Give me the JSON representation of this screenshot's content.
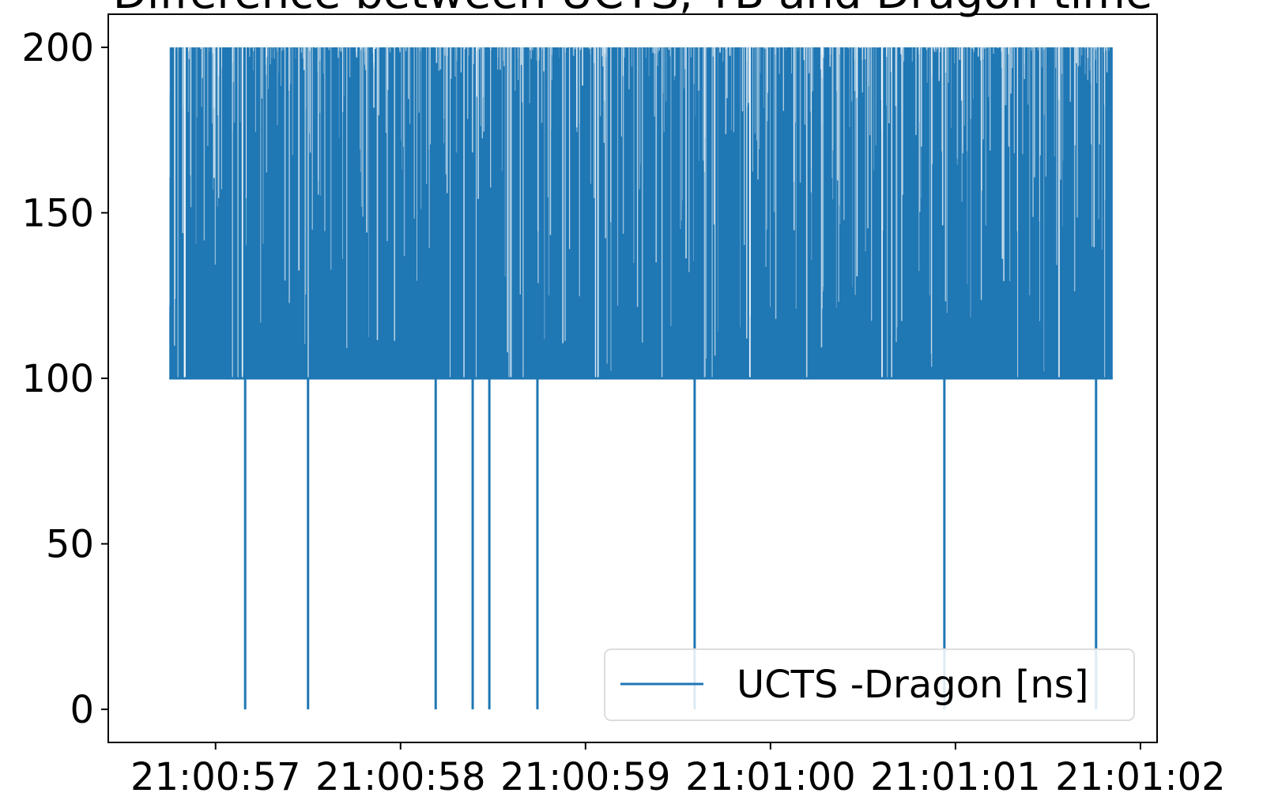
{
  "chart_data": {
    "type": "line",
    "title": "Difference between UCTS, TB and Dragon time",
    "xlabel": "",
    "ylabel": "",
    "x_tick_labels": [
      "21:00:57",
      "21:00:58",
      "21:00:59",
      "21:01:00",
      "21:01:01",
      "21:01:02"
    ],
    "y_ticks": [
      0,
      50,
      100,
      150,
      200
    ],
    "ylim": [
      -10,
      210
    ],
    "xlim": [
      "21:00:56.42",
      "21:01:02.09"
    ],
    "grid": false,
    "legend": {
      "placement": "lower right"
    },
    "series": [
      {
        "name": "UCTS -Dragon [ns]",
        "color": "#1f77b4",
        "x_range": [
          "21:00:56.75",
          "21:01:01.85"
        ],
        "values_band": [
          100,
          200
        ],
        "baseline": 100,
        "dips_to_zero_at": [
          "21:00:57.16",
          "21:00:57.50",
          "21:00:58.19",
          "21:00:58.39",
          "21:00:58.48",
          "21:00:58.74",
          "21:00:59.59",
          "21:01:00.94",
          "21:01:01.76"
        ],
        "min": 0,
        "max": 200
      }
    ]
  }
}
